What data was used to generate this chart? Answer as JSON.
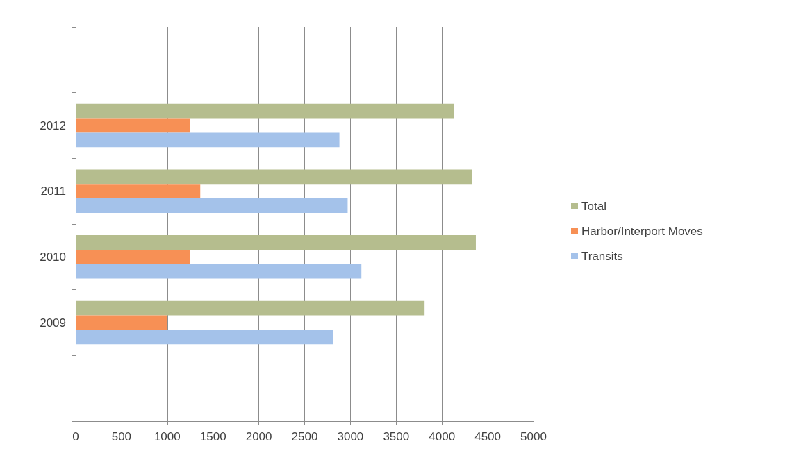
{
  "chart_data": {
    "type": "bar",
    "orientation": "horizontal",
    "categories": [
      null,
      "2012",
      "2011",
      "2010",
      "2009",
      null
    ],
    "series": [
      {
        "name": "Total",
        "color": "#b5bd8e",
        "values": [
          null,
          4130,
          4330,
          4370,
          3810,
          null
        ]
      },
      {
        "name": "Harbor/Interport Moves",
        "color": "#f79055",
        "values": [
          null,
          1250,
          1360,
          1250,
          1000,
          null
        ]
      },
      {
        "name": "Transits",
        "color": "#a4c2ea",
        "values": [
          null,
          2880,
          2970,
          3120,
          2810,
          null
        ]
      }
    ],
    "xlim": [
      0,
      5000
    ],
    "xticks": [
      0,
      500,
      1000,
      1500,
      2000,
      2500,
      3000,
      3500,
      4000,
      4500,
      5000
    ],
    "grid": "x",
    "legend": "right"
  }
}
